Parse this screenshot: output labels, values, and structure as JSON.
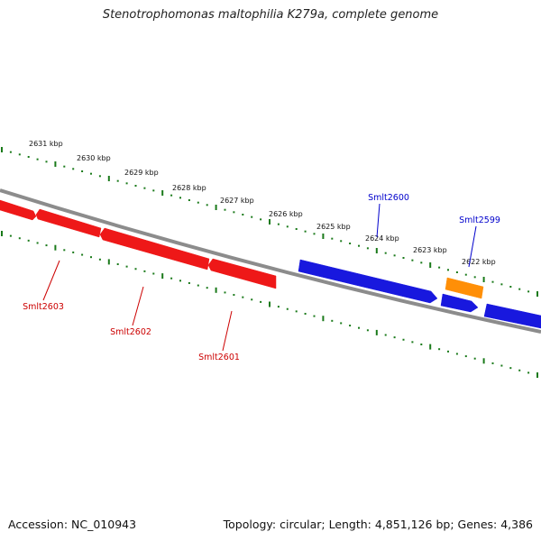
{
  "title": "Stenotrophomonas maltophilia K279a, complete genome",
  "accession": "Accession: NC_010943",
  "topology": "Topology: circular; Length: 4,851,126 bp; Genes: 4,386",
  "ruler": {
    "labels": [
      "2631 kbp",
      "2630 kbp",
      "2629 kbp",
      "2628 kbp",
      "2627 kbp",
      "2626 kbp",
      "2625 kbp",
      "2624 kbp",
      "2623 kbp",
      "2622 kbp"
    ],
    "tick_color": "#1a7a1a"
  },
  "backbone_color": "#8c8c8c",
  "genes": [
    {
      "label": "",
      "strand": "reverse",
      "color": "#ee1111"
    },
    {
      "label": "Smlt2603",
      "strand": "reverse",
      "color": "#ee1111"
    },
    {
      "label": "Smlt2602",
      "strand": "reverse",
      "color": "#ee1111"
    },
    {
      "label": "Smlt2601",
      "strand": "reverse",
      "color": "#ee1111"
    },
    {
      "label": "Smlt2600",
      "strand": "forward",
      "color": "#1111dd"
    },
    {
      "label": "Smlt2599",
      "strand": "forward",
      "color": "#ff8c00"
    },
    {
      "label": "",
      "strand": "forward",
      "color": "#1111dd"
    },
    {
      "label": "",
      "strand": "forward",
      "color": "#1111dd"
    }
  ],
  "label_colors": {
    "reverse": "#cc0000",
    "forward": "#0000cc"
  }
}
